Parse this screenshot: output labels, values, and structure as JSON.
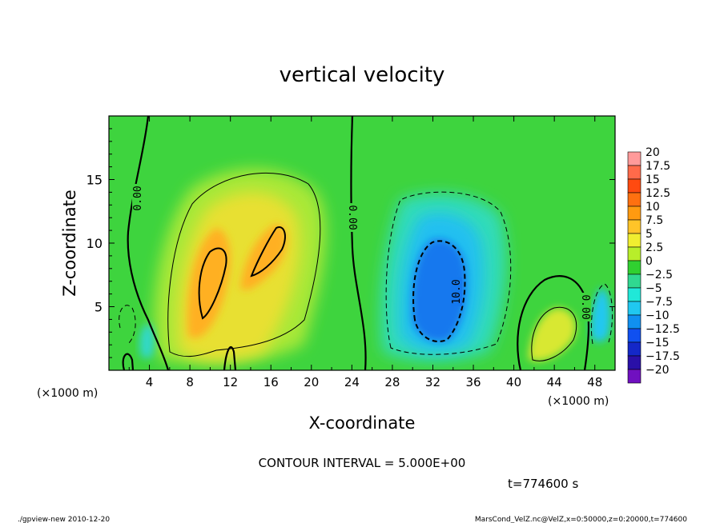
{
  "chart_data": {
    "type": "heatmap",
    "title": "vertical velocity",
    "xlabel": "X-coordinate",
    "ylabel": "Z-coordinate",
    "x_unit": "(×1000 m)",
    "y_unit": "(×1000 m)",
    "xlim": [
      0,
      50
    ],
    "ylim": [
      0,
      20
    ],
    "xticks": [
      4,
      8,
      12,
      16,
      20,
      24,
      28,
      32,
      36,
      40,
      44,
      48
    ],
    "yticks": [
      5,
      10,
      15
    ],
    "colorbar": {
      "levels": [
        20,
        17.5,
        15,
        12.5,
        10,
        7.5,
        5,
        2.5,
        0,
        -2.5,
        -5,
        -7.5,
        -10,
        -12.5,
        -15,
        -17.5,
        -20
      ],
      "labels": [
        "20",
        "17.5",
        "15",
        "12.5",
        "10",
        "7.5",
        "5",
        "2.5",
        "0",
        "−2.5",
        "−5",
        "−7.5",
        "−10",
        "−12.5",
        "−15",
        "−17.5",
        "−20"
      ],
      "colors": [
        "#ff9a9a",
        "#ff6a4a",
        "#ff4a10",
        "#ff7010",
        "#ff9a10",
        "#ffc428",
        "#f0ee30",
        "#b8ee2a",
        "#30d030",
        "#30d890",
        "#20e8d8",
        "#20c8f0",
        "#1090f0",
        "#1050f0",
        "#1428c8",
        "#2a10a8",
        "#7010c0"
      ]
    },
    "contour_labels": [
      "0.00",
      "0.00",
      "10.0",
      "0.00"
    ],
    "contour_interval": 5.0,
    "features": [
      {
        "name": "updraft",
        "x": 10.2,
        "z": 6.5,
        "w": 15
      },
      {
        "name": "updraft",
        "x": 16.5,
        "z": 9.5,
        "w": 13
      },
      {
        "name": "downdraft",
        "x": 33,
        "z": 7,
        "w": -12
      },
      {
        "name": "updraft",
        "x": 44,
        "z": 3,
        "w": 7
      },
      {
        "name": "downdraft",
        "x": 48,
        "z": 4.5,
        "w": -7
      }
    ]
  },
  "footer": {
    "contour_interval_text": "CONTOUR INTERVAL = 5.000E+00",
    "time_text": "t=774600 s",
    "program_text": "./gpview-new  2010-12-20",
    "source_text": "MarsCond_VelZ.nc@VelZ,x=0:50000,z=0:20000,t=774600"
  }
}
